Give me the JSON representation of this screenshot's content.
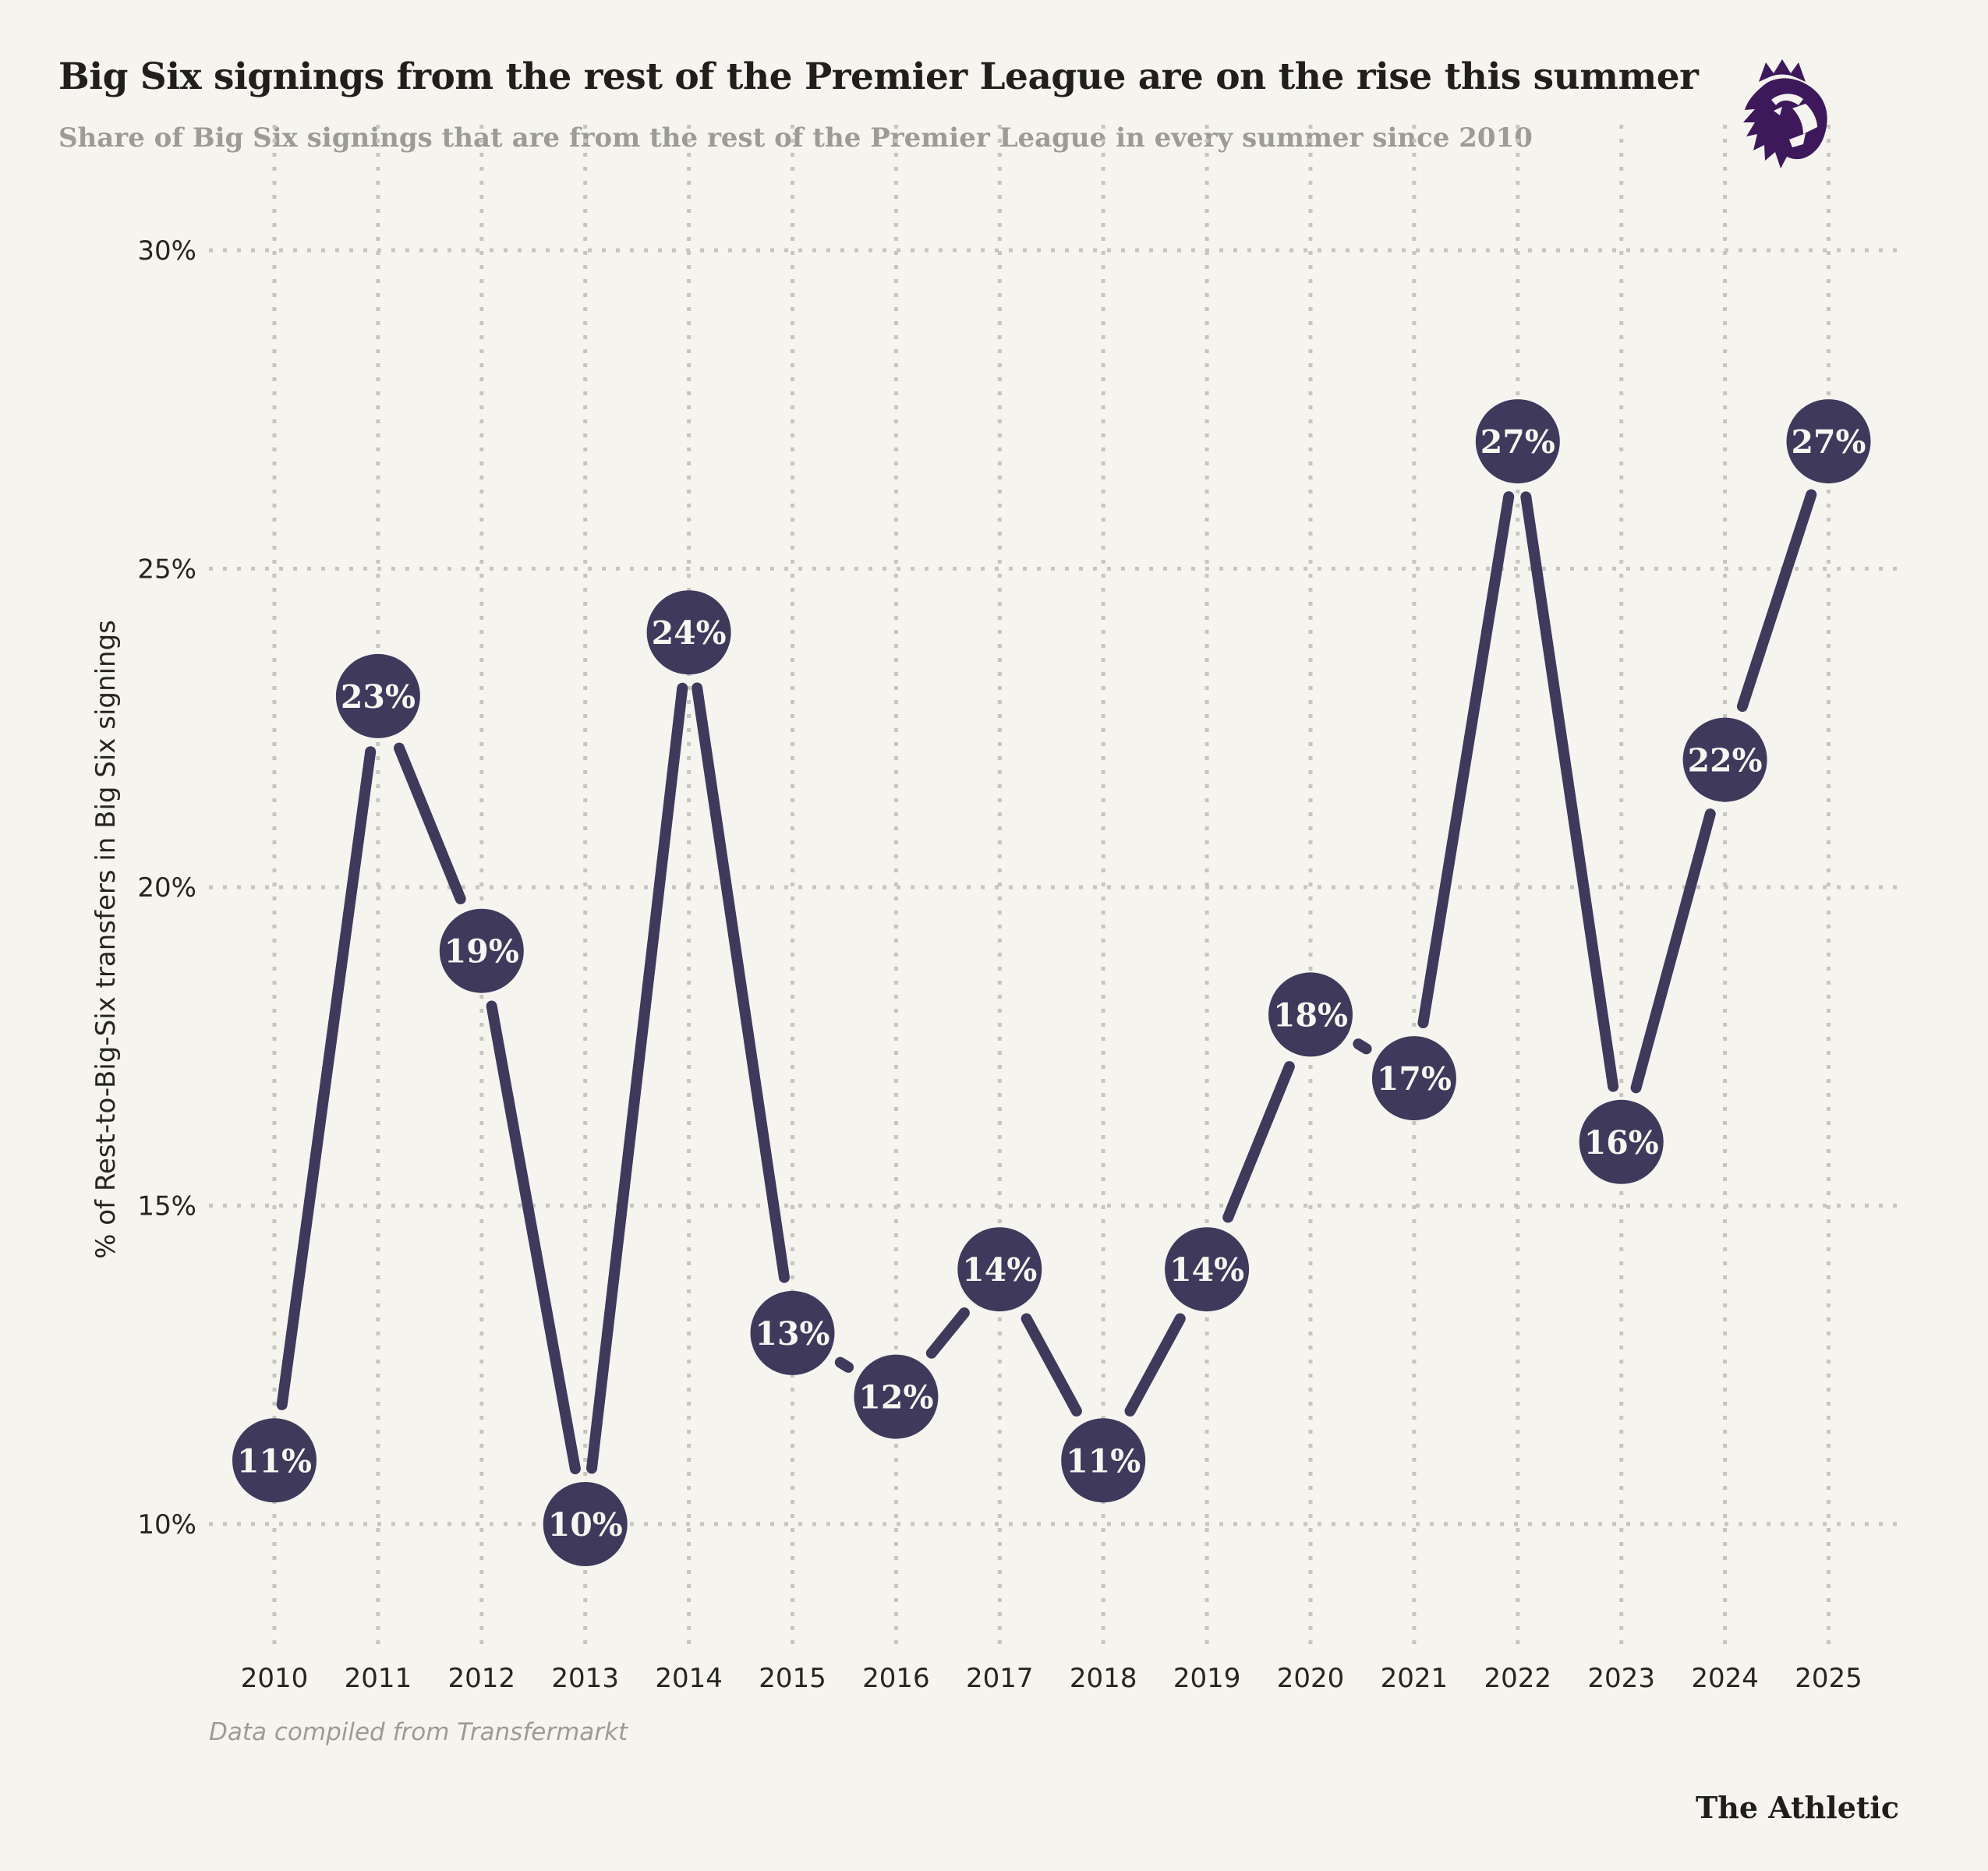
{
  "chart_data": {
    "type": "line",
    "title": "Big Six signings from the rest of the Premier League are on the rise this summer",
    "subtitle": "Share of Big Six signings that are from the rest of the Premier League in every summer since 2010",
    "x": [
      2010,
      2011,
      2012,
      2013,
      2014,
      2015,
      2016,
      2017,
      2018,
      2019,
      2020,
      2021,
      2022,
      2023,
      2024,
      2025
    ],
    "series": [
      {
        "name": "Share of Big Six signings from the rest of the Premier League",
        "values": [
          11,
          23,
          19,
          10,
          24,
          13,
          12,
          14,
          11,
          14,
          18,
          17,
          27,
          16,
          22,
          27
        ]
      }
    ],
    "point_labels": [
      "11%",
      "23%",
      "19%",
      "10%",
      "24%",
      "13%",
      "12%",
      "14%",
      "11%",
      "14%",
      "18%",
      "17%",
      "27%",
      "16%",
      "22%",
      "27%"
    ],
    "xlabel": "",
    "ylabel": "% of Rest-to-Big-Six transfers in Big Six signings",
    "yticks": [
      10,
      15,
      20,
      25,
      30
    ],
    "ytick_labels": [
      "10%",
      "15%",
      "20%",
      "25%",
      "30%"
    ],
    "ylim": [
      8,
      32
    ],
    "grid": "dotted-both-axes",
    "legend": "none",
    "marker": "filled-circle-with-percentage-label"
  },
  "footer": {
    "source": "Data compiled from Transfermarkt",
    "brand": "The Athletic"
  },
  "icons": {
    "logo": "premier-league-lion-logo"
  },
  "colors": {
    "background": "#F5F4EF",
    "accent": "#3F395C",
    "grid_dots": "#C6C5C0",
    "text": "#201F1C",
    "muted": "#9C9B96",
    "logo_purple": "#3D195B",
    "point_label": "#F7F6F1"
  }
}
